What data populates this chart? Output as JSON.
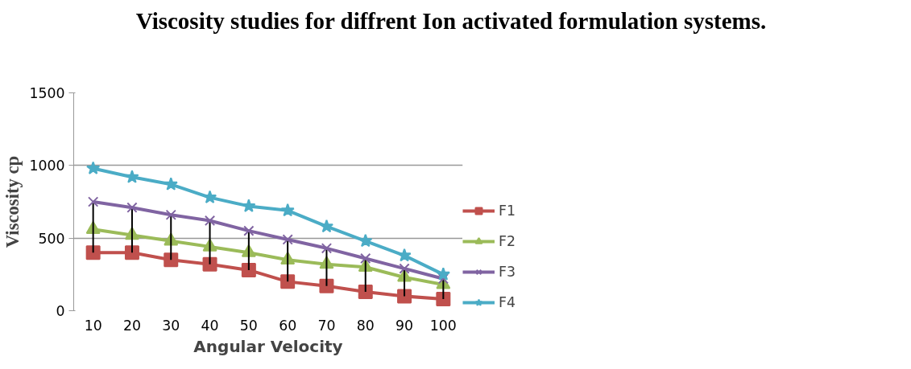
{
  "chart_data": {
    "type": "line",
    "title": "Viscosity studies for diffrent Ion activated formulation systems.",
    "xlabel": "Angular Velocity",
    "ylabel": "Viscosity cp",
    "categories": [
      "10",
      "20",
      "30",
      "40",
      "50",
      "60",
      "70",
      "80",
      "90",
      "100"
    ],
    "ylim": [
      0,
      1500
    ],
    "yticks": [
      0,
      500,
      1000,
      1500
    ],
    "grid": "y",
    "legend": "right",
    "series": [
      {
        "name": "F1",
        "color": "#c0504d",
        "marker": "square",
        "values": [
          400,
          400,
          350,
          320,
          280,
          200,
          170,
          130,
          100,
          80
        ]
      },
      {
        "name": "F2",
        "color": "#9bbb59",
        "marker": "triangle",
        "values": [
          560,
          520,
          480,
          440,
          400,
          350,
          320,
          300,
          230,
          180
        ],
        "errors": [
          [
            400,
            740
          ],
          [
            400,
            710
          ],
          [
            350,
            660
          ],
          [
            320,
            620
          ],
          [
            280,
            550
          ],
          [
            200,
            490
          ],
          [
            170,
            430
          ],
          [
            130,
            360
          ],
          [
            100,
            290
          ],
          [
            80,
            220
          ]
        ]
      },
      {
        "name": "F3",
        "color": "#8064a2",
        "marker": "cross",
        "values": [
          750,
          710,
          660,
          620,
          550,
          490,
          430,
          360,
          290,
          220
        ]
      },
      {
        "name": "F4",
        "color": "#4bacc6",
        "marker": "star",
        "values": [
          980,
          920,
          870,
          780,
          720,
          690,
          580,
          480,
          380,
          250
        ]
      }
    ]
  }
}
